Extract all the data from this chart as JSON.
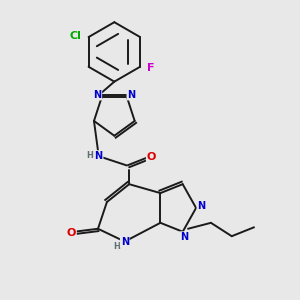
{
  "bg_color": "#e8e8e8",
  "bond_color": "#1a1a1a",
  "bond_width": 1.4,
  "atom_colors": {
    "N": "#0000cc",
    "O": "#dd0000",
    "Cl": "#00aa00",
    "F": "#cc00cc",
    "H": "#607070",
    "C": "#1a1a1a"
  },
  "font_size": 7
}
